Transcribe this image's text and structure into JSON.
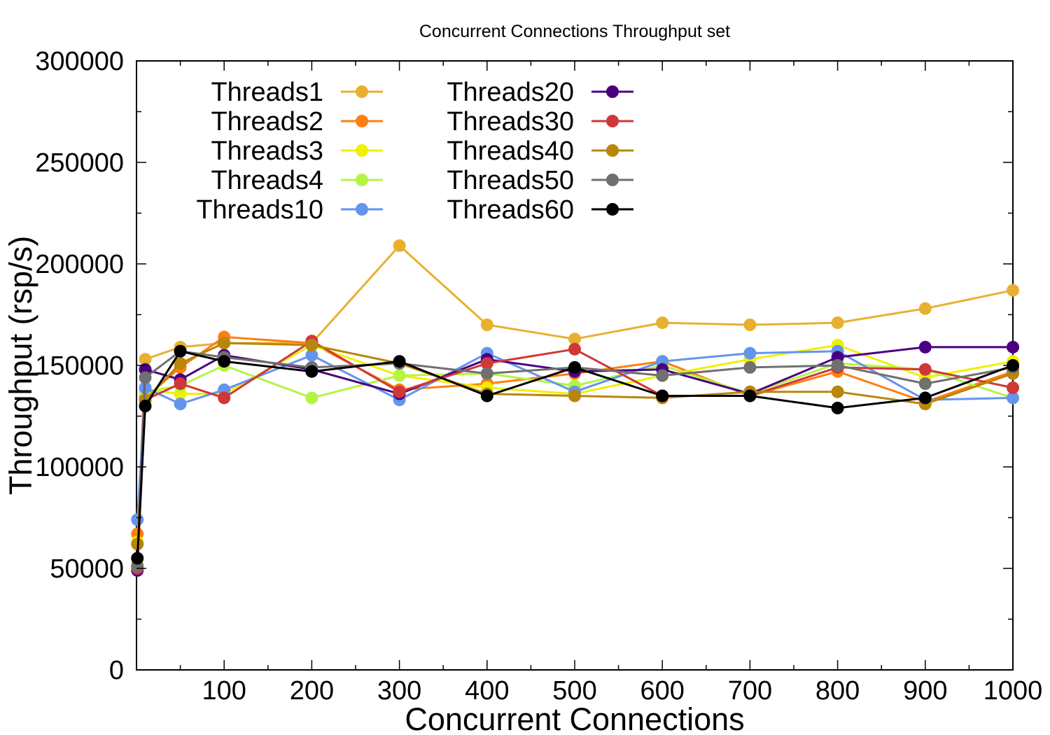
{
  "chart_data": {
    "type": "line",
    "title": "Concurrent Connections Throughput set",
    "xlabel": "Concurrent Connections",
    "ylabel": "Throughput (rsp/s)",
    "xlim": [
      0,
      1000
    ],
    "ylim": [
      0,
      300000
    ],
    "x_ticks": [
      100,
      200,
      300,
      400,
      500,
      600,
      700,
      800,
      900,
      1000
    ],
    "y_ticks": [
      0,
      50000,
      100000,
      150000,
      200000,
      250000,
      300000
    ],
    "grid": false,
    "legend_position": "top-left",
    "x": [
      1,
      10,
      50,
      100,
      200,
      300,
      400,
      500,
      600,
      700,
      800,
      900,
      1000
    ],
    "series": [
      {
        "name": "Threads1",
        "color": "#e8b030",
        "values": [
          62000,
          153000,
          159000,
          161000,
          161000,
          209000,
          170000,
          163000,
          171000,
          170000,
          171000,
          178000,
          187000
        ]
      },
      {
        "name": "Threads2",
        "color": "#ff7f0e",
        "values": [
          67000,
          134000,
          149000,
          164000,
          161000,
          138000,
          141000,
          146000,
          152000,
          135000,
          147000,
          132000,
          147000
        ]
      },
      {
        "name": "Threads3",
        "color": "#f0f000",
        "values": [
          63000,
          138000,
          136000,
          136000,
          160000,
          145000,
          139000,
          136000,
          145000,
          153000,
          160000,
          144000,
          152000
        ]
      },
      {
        "name": "Threads4",
        "color": "#b5f542",
        "values": [
          52000,
          137000,
          140000,
          150000,
          134000,
          145000,
          146000,
          140000,
          150000,
          136000,
          151000,
          148000,
          134000
        ]
      },
      {
        "name": "Threads10",
        "color": "#6495ed",
        "values": [
          74000,
          139000,
          131000,
          138000,
          155000,
          133000,
          156000,
          137000,
          152000,
          156000,
          157000,
          133000,
          134000
        ]
      },
      {
        "name": "Threads20",
        "color": "#4b0082",
        "values": [
          49000,
          148000,
          143000,
          155000,
          148000,
          136000,
          153000,
          147000,
          148000,
          136000,
          154000,
          159000,
          159000
        ]
      },
      {
        "name": "Threads30",
        "color": "#d03838",
        "values": [
          50000,
          133000,
          141000,
          134000,
          162000,
          137000,
          151000,
          158000,
          135000,
          135000,
          149000,
          148000,
          139000
        ]
      },
      {
        "name": "Threads40",
        "color": "#b8860b",
        "values": [
          62000,
          133000,
          151000,
          161000,
          160000,
          151000,
          136000,
          135000,
          134000,
          137000,
          137000,
          131000,
          146000
        ]
      },
      {
        "name": "Threads50",
        "color": "#707070",
        "values": [
          51000,
          144000,
          157000,
          154000,
          149000,
          151000,
          146000,
          149000,
          145000,
          149000,
          150000,
          141000,
          149000
        ]
      },
      {
        "name": "Threads60",
        "color": "#000000",
        "values": [
          55000,
          130000,
          157000,
          152000,
          147000,
          152000,
          135000,
          149000,
          135000,
          135000,
          129000,
          134000,
          150000
        ]
      }
    ]
  }
}
